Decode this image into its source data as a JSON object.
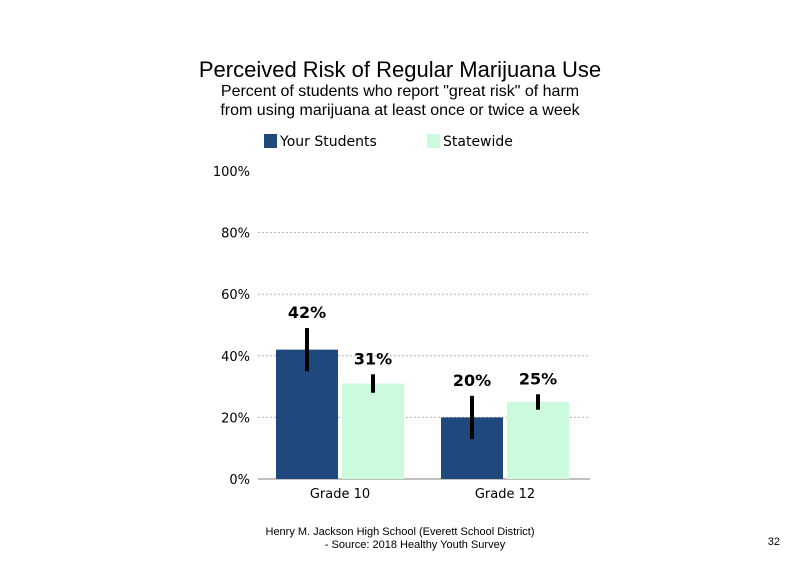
{
  "chart_data": {
    "type": "bar",
    "title": "Perceived Risk of Regular Marijuana Use",
    "subtitle_lines": [
      "Percent of students who report \"great risk\" of harm",
      "from using marijuana at least once or twice a week"
    ],
    "categories": [
      "Grade 10",
      "Grade 12"
    ],
    "series": [
      {
        "name": "Your Students",
        "color": "#1f497d",
        "values": [
          42,
          20
        ],
        "labels": [
          "42%",
          "20%"
        ],
        "error_low": [
          35,
          13
        ],
        "error_high": [
          49,
          27
        ]
      },
      {
        "name": "Statewide",
        "color": "#ccfadc",
        "values": [
          31,
          25
        ],
        "labels": [
          "31%",
          "25%"
        ],
        "error_low": [
          28,
          22.5
        ],
        "error_high": [
          34,
          27.5
        ]
      }
    ],
    "ylim": [
      0,
      100
    ],
    "yticks": [
      0,
      20,
      40,
      60,
      80,
      100
    ],
    "ytick_labels": [
      "0%",
      "20%",
      "40%",
      "60%",
      "80%",
      "100%"
    ],
    "gridlines": true,
    "legend_position": "top"
  },
  "footer": {
    "line1": "Henry M. Jackson High School (Everett School District)",
    "line2": "- Source: 2018 Healthy Youth Survey"
  },
  "page_number": "32"
}
